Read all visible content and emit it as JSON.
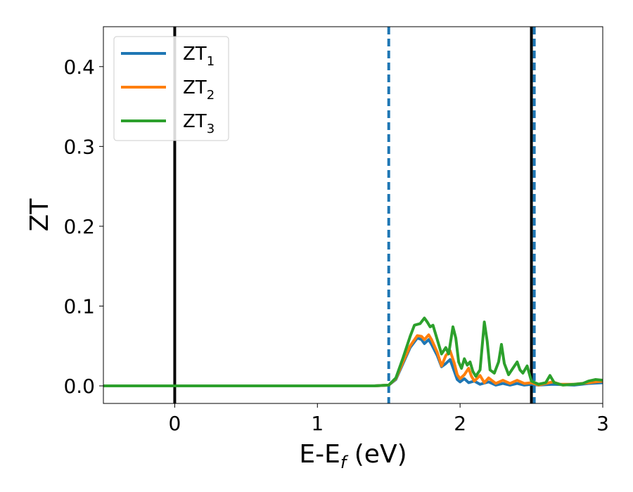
{
  "chart_data": {
    "type": "line",
    "xlabel": "E-E",
    "xlabel_sub": "f",
    "xlabel_unit": " (eV)",
    "ylabel": "ZT",
    "xlim": [
      -0.5,
      3.0
    ],
    "ylim": [
      -0.022,
      0.45
    ],
    "xticks": [
      0,
      1,
      2,
      3
    ],
    "xtick_labels": [
      "0",
      "1",
      "2",
      "3"
    ],
    "yticks": [
      0.0,
      0.1,
      0.2,
      0.3,
      0.4
    ],
    "ytick_labels": [
      "0.0",
      "0.1",
      "0.2",
      "0.3",
      "0.4"
    ],
    "grid": false,
    "legend_position": "top-left",
    "vlines": [
      {
        "x": 0.0,
        "style": "solid",
        "color": "#000000"
      },
      {
        "x": 1.5,
        "style": "dashed",
        "color": "#1f77b4"
      },
      {
        "x": 2.5,
        "style": "solid",
        "color": "#000000"
      },
      {
        "x": 2.52,
        "style": "dashed",
        "color": "#1f77b4"
      }
    ],
    "series": [
      {
        "name": "ZT",
        "name_sub": "1",
        "color": "#1f77b4",
        "points": [
          [
            -0.5,
            0
          ],
          [
            1.4,
            0
          ],
          [
            1.5,
            0.001
          ],
          [
            1.55,
            0.008
          ],
          [
            1.6,
            0.028
          ],
          [
            1.65,
            0.048
          ],
          [
            1.7,
            0.06
          ],
          [
            1.73,
            0.058
          ],
          [
            1.75,
            0.053
          ],
          [
            1.78,
            0.058
          ],
          [
            1.8,
            0.052
          ],
          [
            1.84,
            0.038
          ],
          [
            1.87,
            0.024
          ],
          [
            1.9,
            0.028
          ],
          [
            1.93,
            0.033
          ],
          [
            1.96,
            0.018
          ],
          [
            1.98,
            0.008
          ],
          [
            2.0,
            0.005
          ],
          [
            2.03,
            0.009
          ],
          [
            2.06,
            0.004
          ],
          [
            2.1,
            0.006
          ],
          [
            2.14,
            0.002
          ],
          [
            2.2,
            0.005
          ],
          [
            2.25,
            0.001
          ],
          [
            2.3,
            0.003
          ],
          [
            2.35,
            0.001
          ],
          [
            2.4,
            0.003
          ],
          [
            2.45,
            0.001
          ],
          [
            2.5,
            0.002
          ],
          [
            2.55,
            0.001
          ],
          [
            2.65,
            0.002
          ],
          [
            2.8,
            0.001
          ],
          [
            2.9,
            0.003
          ],
          [
            3.0,
            0.004
          ]
        ]
      },
      {
        "name": "ZT",
        "name_sub": "2",
        "color": "#ff7f0e",
        "points": [
          [
            -0.5,
            0
          ],
          [
            1.4,
            0
          ],
          [
            1.5,
            0.001
          ],
          [
            1.55,
            0.009
          ],
          [
            1.6,
            0.03
          ],
          [
            1.65,
            0.05
          ],
          [
            1.7,
            0.063
          ],
          [
            1.73,
            0.062
          ],
          [
            1.75,
            0.058
          ],
          [
            1.78,
            0.064
          ],
          [
            1.8,
            0.058
          ],
          [
            1.84,
            0.042
          ],
          [
            1.87,
            0.025
          ],
          [
            1.9,
            0.038
          ],
          [
            1.93,
            0.044
          ],
          [
            1.96,
            0.028
          ],
          [
            1.98,
            0.014
          ],
          [
            2.0,
            0.009
          ],
          [
            2.03,
            0.014
          ],
          [
            2.06,
            0.022
          ],
          [
            2.08,
            0.012
          ],
          [
            2.1,
            0.006
          ],
          [
            2.14,
            0.013
          ],
          [
            2.17,
            0.004
          ],
          [
            2.2,
            0.01
          ],
          [
            2.25,
            0.003
          ],
          [
            2.3,
            0.007
          ],
          [
            2.35,
            0.003
          ],
          [
            2.4,
            0.007
          ],
          [
            2.45,
            0.003
          ],
          [
            2.5,
            0.004
          ],
          [
            2.55,
            0.001
          ],
          [
            2.6,
            0.003
          ],
          [
            2.65,
            0.005
          ],
          [
            2.7,
            0.002
          ],
          [
            2.8,
            0.002
          ],
          [
            2.9,
            0.004
          ],
          [
            3.0,
            0.006
          ]
        ]
      },
      {
        "name": "ZT",
        "name_sub": "3",
        "color": "#2ca02c",
        "points": [
          [
            -0.5,
            0
          ],
          [
            1.4,
            0
          ],
          [
            1.5,
            0.001
          ],
          [
            1.55,
            0.01
          ],
          [
            1.6,
            0.035
          ],
          [
            1.65,
            0.062
          ],
          [
            1.68,
            0.076
          ],
          [
            1.72,
            0.078
          ],
          [
            1.75,
            0.085
          ],
          [
            1.77,
            0.08
          ],
          [
            1.79,
            0.074
          ],
          [
            1.81,
            0.076
          ],
          [
            1.84,
            0.058
          ],
          [
            1.87,
            0.04
          ],
          [
            1.9,
            0.048
          ],
          [
            1.92,
            0.04
          ],
          [
            1.95,
            0.074
          ],
          [
            1.97,
            0.06
          ],
          [
            1.99,
            0.03
          ],
          [
            2.01,
            0.022
          ],
          [
            2.03,
            0.034
          ],
          [
            2.05,
            0.026
          ],
          [
            2.07,
            0.03
          ],
          [
            2.09,
            0.018
          ],
          [
            2.11,
            0.012
          ],
          [
            2.14,
            0.02
          ],
          [
            2.17,
            0.08
          ],
          [
            2.19,
            0.056
          ],
          [
            2.21,
            0.02
          ],
          [
            2.24,
            0.016
          ],
          [
            2.27,
            0.03
          ],
          [
            2.29,
            0.052
          ],
          [
            2.31,
            0.028
          ],
          [
            2.34,
            0.014
          ],
          [
            2.37,
            0.022
          ],
          [
            2.4,
            0.03
          ],
          [
            2.42,
            0.02
          ],
          [
            2.44,
            0.016
          ],
          [
            2.47,
            0.025
          ],
          [
            2.5,
            0.006
          ],
          [
            2.55,
            0.002
          ],
          [
            2.6,
            0.004
          ],
          [
            2.63,
            0.013
          ],
          [
            2.66,
            0.004
          ],
          [
            2.72,
            0.001
          ],
          [
            2.8,
            0.002
          ],
          [
            2.86,
            0.003
          ],
          [
            2.9,
            0.006
          ],
          [
            2.95,
            0.008
          ],
          [
            3.0,
            0.007
          ]
        ]
      }
    ]
  }
}
